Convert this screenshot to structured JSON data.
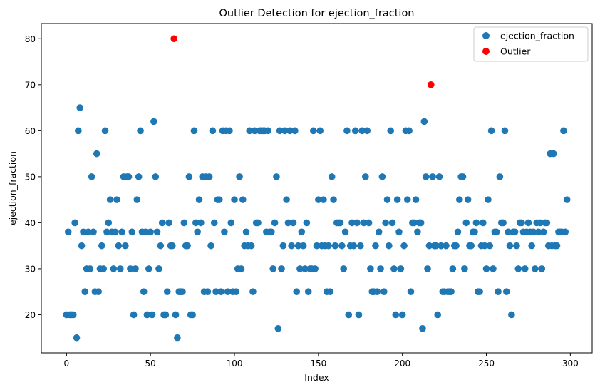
{
  "chart_data": {
    "type": "scatter",
    "title": "Outlier Detection for ejection_fraction",
    "xlabel": "Index",
    "ylabel": "ejection_fraction",
    "xlim": [
      -15,
      313
    ],
    "ylim": [
      11.7,
      83.3
    ],
    "xticks": [
      0,
      50,
      100,
      150,
      200,
      250,
      300
    ],
    "yticks": [
      20,
      30,
      40,
      50,
      60,
      70,
      80
    ],
    "grid": false,
    "legend_position": "top-right",
    "series": [
      {
        "name": "ejection_fraction",
        "color": "#1f77b4",
        "x": [
          0,
          1,
          2,
          3,
          4,
          5,
          6,
          7,
          8,
          9,
          10,
          11,
          12,
          13,
          14,
          15,
          16,
          17,
          18,
          19,
          20,
          21,
          22,
          23,
          24,
          25,
          26,
          27,
          28,
          29,
          30,
          31,
          32,
          33,
          34,
          35,
          36,
          37,
          38,
          39,
          40,
          41,
          42,
          43,
          44,
          45,
          46,
          47,
          48,
          49,
          50,
          51,
          52,
          53,
          54,
          55,
          56,
          57,
          58,
          59,
          60,
          61,
          62,
          63,
          65,
          66,
          67,
          68,
          69,
          70,
          71,
          72,
          73,
          74,
          75,
          76,
          77,
          78,
          79,
          80,
          81,
          82,
          83,
          84,
          85,
          86,
          87,
          88,
          89,
          90,
          91,
          92,
          93,
          94,
          95,
          96,
          97,
          98,
          99,
          100,
          101,
          102,
          103,
          104,
          105,
          106,
          107,
          108,
          109,
          110,
          111,
          112,
          113,
          114,
          115,
          116,
          117,
          118,
          119,
          120,
          121,
          122,
          123,
          124,
          125,
          126,
          127,
          128,
          129,
          130,
          131,
          132,
          133,
          134,
          135,
          136,
          137,
          138,
          139,
          140,
          141,
          142,
          143,
          144,
          145,
          146,
          147,
          148,
          149,
          150,
          151,
          152,
          153,
          154,
          155,
          156,
          157,
          158,
          159,
          160,
          161,
          162,
          163,
          164,
          165,
          166,
          167,
          168,
          169,
          170,
          171,
          172,
          173,
          174,
          175,
          176,
          177,
          178,
          179,
          180,
          181,
          182,
          183,
          184,
          185,
          186,
          187,
          188,
          189,
          190,
          191,
          192,
          193,
          194,
          195,
          196,
          197,
          198,
          199,
          200,
          201,
          202,
          203,
          204,
          205,
          206,
          207,
          208,
          209,
          210,
          211,
          212,
          213,
          214,
          215,
          216,
          218,
          219,
          220,
          221,
          222,
          223,
          224,
          225,
          226,
          227,
          228,
          229,
          230,
          231,
          232,
          233,
          234,
          235,
          236,
          237,
          238,
          239,
          240,
          241,
          242,
          243,
          244,
          245,
          246,
          247,
          248,
          249,
          250,
          251,
          252,
          253,
          254,
          255,
          256,
          257,
          258,
          259,
          260,
          261,
          262,
          263,
          264,
          265,
          266,
          267,
          268,
          269,
          270,
          271,
          272,
          273,
          274,
          275,
          276,
          277,
          278,
          279,
          280,
          281,
          282,
          283,
          284,
          285,
          286,
          287,
          288,
          289,
          290,
          291,
          292,
          293,
          294,
          295,
          296,
          297,
          298
        ],
        "y": [
          20,
          38,
          20,
          20,
          20,
          40,
          15,
          60,
          65,
          35,
          38,
          25,
          30,
          38,
          30,
          50,
          38,
          25,
          55,
          25,
          30,
          35,
          30,
          60,
          38,
          40,
          45,
          38,
          30,
          38,
          45,
          35,
          30,
          38,
          50,
          35,
          50,
          50,
          30,
          38,
          20,
          30,
          45,
          50,
          60,
          38,
          25,
          38,
          20,
          30,
          38,
          20,
          62,
          50,
          38,
          30,
          35,
          40,
          20,
          20,
          25,
          40,
          35,
          35,
          20,
          15,
          25,
          25,
          25,
          40,
          35,
          35,
          50,
          20,
          20,
          60,
          40,
          38,
          45,
          40,
          50,
          25,
          50,
          25,
          50,
          35,
          60,
          40,
          25,
          45,
          45,
          25,
          60,
          38,
          60,
          25,
          60,
          40,
          25,
          45,
          25,
          30,
          50,
          30,
          45,
          35,
          38,
          35,
          60,
          35,
          25,
          60,
          40,
          40,
          60,
          60,
          60,
          60,
          38,
          60,
          38,
          38,
          30,
          40,
          50,
          17,
          60,
          30,
          35,
          60,
          45,
          40,
          60,
          35,
          40,
          60,
          25,
          35,
          30,
          38,
          35,
          30,
          40,
          25,
          30,
          30,
          60,
          30,
          35,
          45,
          60,
          35,
          45,
          35,
          25,
          35,
          25,
          50,
          45,
          35,
          40,
          40,
          40,
          35,
          30,
          38,
          60,
          20,
          35,
          40,
          35,
          60,
          40,
          20,
          35,
          60,
          40,
          50,
          60,
          40,
          30,
          25,
          25,
          35,
          25,
          38,
          30,
          50,
          25,
          40,
          45,
          35,
          60,
          40,
          30,
          20,
          45,
          38,
          30,
          20,
          35,
          60,
          45,
          60,
          25,
          40,
          40,
          45,
          38,
          40,
          40,
          17,
          62,
          50,
          30,
          35,
          50,
          35,
          35,
          20,
          50,
          35,
          25,
          25,
          35,
          25,
          25,
          25,
          30,
          35,
          35,
          38,
          45,
          50,
          50,
          30,
          40,
          45,
          35,
          35,
          38,
          38,
          40,
          25,
          25,
          35,
          40,
          35,
          30,
          45,
          35,
          60,
          30,
          38,
          38,
          25,
          50,
          40,
          40,
          60,
          25,
          38,
          35,
          20,
          38,
          38,
          35,
          30,
          40,
          40,
          38,
          30,
          38,
          40,
          38,
          35,
          38,
          30,
          40,
          38,
          40,
          30,
          38,
          40,
          40,
          35,
          55,
          35,
          55,
          35,
          35,
          38,
          38,
          38,
          60,
          38,
          45
        ]
      },
      {
        "name": "Outlier",
        "color": "#ff0000",
        "x": [
          64,
          217
        ],
        "y": [
          80,
          70
        ]
      }
    ]
  }
}
